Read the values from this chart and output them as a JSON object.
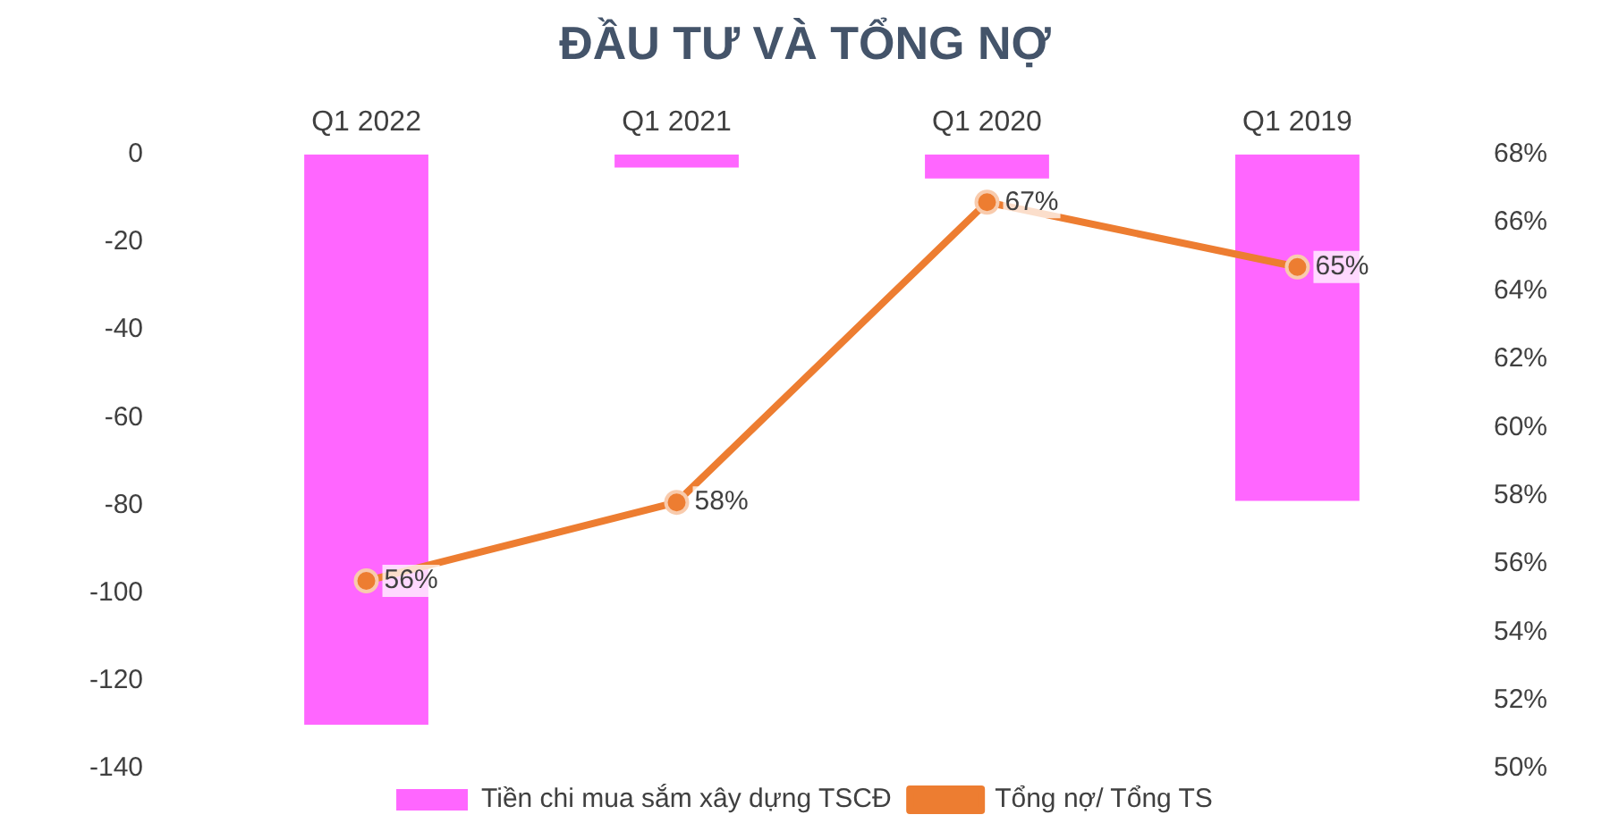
{
  "chart_data": {
    "type": "bar",
    "title": "ĐẦU TƯ VÀ TỔNG NỢ",
    "categories": [
      "Q1 2022",
      "Q1 2021",
      "Q1 2020",
      "Q1 2019"
    ],
    "series": [
      {
        "name": "Tiền chi mua sắm xây dựng TSCĐ",
        "color": "#ff66ff",
        "values": [
          -130,
          -3,
          -5.5,
          -79
        ]
      },
      {
        "name": "Tổng nợ/ Tổng TS",
        "type": "line",
        "axis": "y2",
        "color": "#ed7d31",
        "values": [
          55.5,
          57.8,
          66.6,
          64.7
        ],
        "value_labels": [
          "56%",
          "58%",
          "67%",
          "65%"
        ]
      }
    ],
    "ylim": [
      -140,
      0
    ],
    "yticks": [
      -140,
      -120,
      -100,
      -80,
      -60,
      -40,
      -20,
      0
    ],
    "y2lim": [
      50,
      68
    ],
    "y2ticks": [
      {
        "value": 50,
        "label": "50%"
      },
      {
        "value": 52,
        "label": "52%"
      },
      {
        "value": 54,
        "label": "54%"
      },
      {
        "value": 56,
        "label": "56%"
      },
      {
        "value": 58,
        "label": "58%"
      },
      {
        "value": 60,
        "label": "60%"
      },
      {
        "value": 62,
        "label": "62%"
      },
      {
        "value": 64,
        "label": "64%"
      },
      {
        "value": 66,
        "label": "66%"
      },
      {
        "value": 68,
        "label": "68%"
      }
    ],
    "legend": "bottom",
    "marker": "circle",
    "grid": false
  }
}
